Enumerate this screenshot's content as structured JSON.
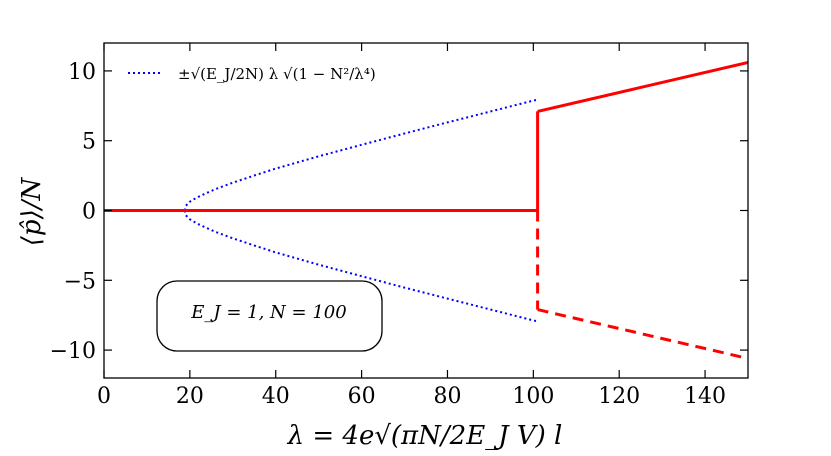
{
  "chart_data": {
    "type": "line",
    "xlabel": "λ = 4e√(πN/2E_J V) l",
    "ylabel": "⟨p̂⟩/N",
    "xlim": [
      0,
      150
    ],
    "ylim": [
      -12,
      12
    ],
    "xticks": [
      0,
      20,
      40,
      60,
      80,
      100,
      120,
      140
    ],
    "yticks": [
      -10,
      -5,
      0,
      5,
      10
    ],
    "ytick_labels": [
      "−10",
      "−5",
      "0",
      "5",
      "10"
    ],
    "grid": false,
    "legend_position": "top-left",
    "annotation": "E_J = 1,  N = 100",
    "parameters": {
      "E_J": 1,
      "N": 100
    },
    "series": [
      {
        "name": "±√(E_J/2N) λ √(1 − N²/λ⁴)",
        "style": "dotted",
        "color": "#0000ff",
        "x": [
          18.8,
          19,
          19.5,
          20,
          21,
          22,
          24,
          26,
          30,
          35,
          40,
          50,
          60,
          70,
          80,
          90,
          100,
          101
        ],
        "upper": [
          0,
          0.3,
          0.5,
          0.63,
          0.82,
          0.98,
          1.27,
          1.53,
          1.99,
          2.51,
          3.0,
          3.88,
          4.71,
          5.52,
          6.31,
          7.09,
          7.87,
          7.94
        ],
        "lower": [
          0,
          -0.3,
          -0.5,
          -0.63,
          -0.82,
          -0.98,
          -1.27,
          -1.53,
          -1.99,
          -2.51,
          -3.0,
          -3.88,
          -4.71,
          -5.52,
          -6.31,
          -7.09,
          -7.87,
          -7.94
        ]
      },
      {
        "style": "solid",
        "color": "#ff0000",
        "segments": [
          {
            "x": [
              0,
              101
            ],
            "y": [
              0,
              0
            ]
          },
          {
            "x": [
              101,
              101
            ],
            "y": [
              0,
              7.1
            ]
          },
          {
            "x": [
              101,
              150
            ],
            "y": [
              7.1,
              10.6
            ]
          }
        ]
      },
      {
        "style": "dashed",
        "color": "#ff0000",
        "segments": [
          {
            "x": [
              101,
              101
            ],
            "y": [
              0,
              -7.1
            ]
          },
          {
            "x": [
              101,
              150
            ],
            "y": [
              -7.1,
              -10.6
            ]
          }
        ]
      }
    ]
  }
}
